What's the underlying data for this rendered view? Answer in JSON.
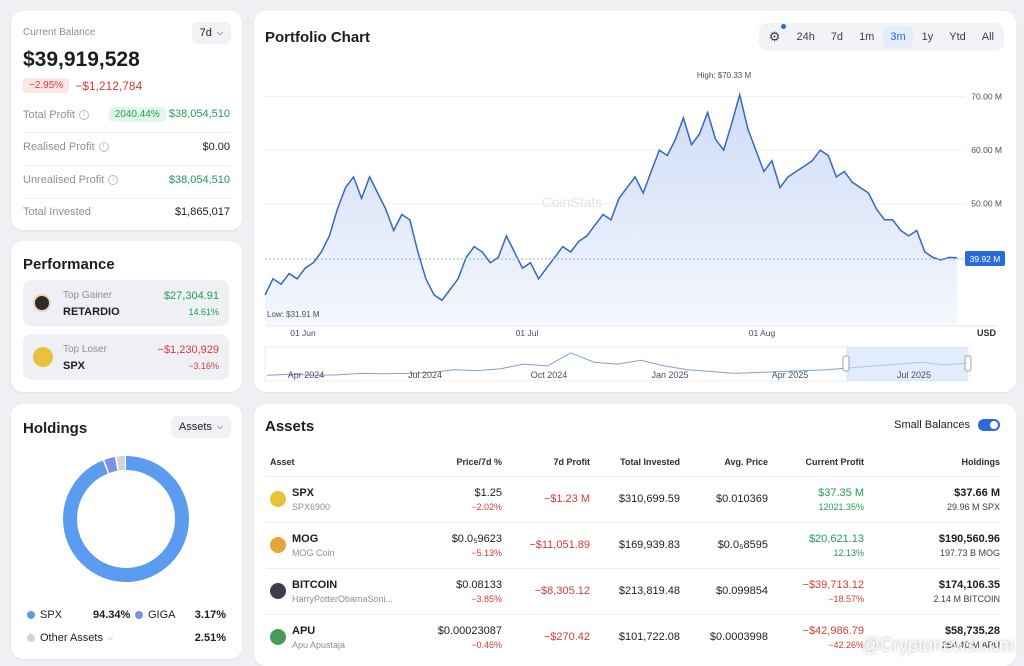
{
  "balance": {
    "label": "Current Balance",
    "period": "7d",
    "value": "$39,919,528",
    "change_pct": "−2.95%",
    "change_abs": "−$1,212,784",
    "rows": [
      {
        "label": "Total Profit",
        "badge": "2040.44%",
        "value": "$38,054,510",
        "tone": "green"
      },
      {
        "label": "Realised Profit",
        "value": "$0.00",
        "tone": "plain"
      },
      {
        "label": "Unrealised Profit",
        "value": "$38,054,510",
        "tone": "green"
      },
      {
        "label": "Total Invested",
        "value": "$1,865,017",
        "tone": "plain"
      }
    ]
  },
  "performance": {
    "title": "Performance",
    "gainer": {
      "label": "Top Gainer",
      "name": "RETARDIO",
      "value": "$27,304.91",
      "pct": "14.61%"
    },
    "loser": {
      "label": "Top Loser",
      "name": "SPX",
      "value": "−$1,230,929",
      "pct": "−3.16%"
    }
  },
  "holdings": {
    "title": "Holdings",
    "dropdown": "Assets",
    "slices": [
      {
        "name": "SPX",
        "pct": "94.34%",
        "value": 94.34,
        "color": "#5b9cf0"
      },
      {
        "name": "GIGA",
        "pct": "3.17%",
        "value": 3.17,
        "color": "#7e8fe6"
      },
      {
        "name": "Other Assets",
        "pct": "2.51%",
        "value": 2.51,
        "color": "#cfd3da"
      }
    ]
  },
  "chart": {
    "title": "Portfolio Chart",
    "tabs": [
      "24h",
      "7d",
      "1m",
      "3m",
      "1y",
      "Ytd",
      "All"
    ],
    "active_tab": "3m",
    "high_label": "High: $70.33 M",
    "low_label": "Low: $31.91 M",
    "current_label": "39.92 M",
    "watermark": "CoinStats",
    "currency": "USD",
    "navigator_labels": [
      "Apr 2024",
      "Jul 2024",
      "Oct 2024",
      "Jan 2025",
      "Apr 2025",
      "Jul 2025"
    ]
  },
  "chart_data": {
    "type": "area",
    "x_ticks": [
      "01 Jun",
      "01 Jul",
      "01 Aug"
    ],
    "y_ticks": [
      "70.00 M",
      "60.00 M",
      "50.00 M"
    ],
    "ylim": [
      30,
      74
    ],
    "y_unit": "M USD",
    "series": [
      {
        "values": [
          33,
          36,
          35,
          37,
          36,
          38,
          39,
          41,
          44,
          49,
          53,
          55,
          51,
          55,
          52,
          49,
          45,
          48,
          47,
          41,
          36,
          33,
          32,
          34,
          36,
          40,
          42,
          41,
          39,
          40,
          44,
          41,
          38,
          39,
          36,
          38,
          40,
          42,
          41,
          43,
          44,
          46,
          48,
          47,
          51,
          53,
          55,
          52,
          56,
          60,
          59,
          62,
          66,
          61,
          63,
          67,
          62,
          60,
          65,
          70.33,
          64,
          60,
          56,
          58,
          53,
          55,
          56,
          57,
          58,
          60,
          59,
          55,
          56,
          54,
          53,
          52,
          49,
          47,
          47,
          45,
          44,
          45,
          41,
          40,
          39.5,
          40,
          39.92
        ]
      }
    ],
    "grid": true
  },
  "assets": {
    "title": "Assets",
    "toggle_label": "Small Balances",
    "columns": [
      "Asset",
      "Price/7d %",
      "7d Profit",
      "Total Invested",
      "Avg. Price",
      "Current Profit",
      "Holdings"
    ],
    "rows": [
      {
        "symbol": "SPX",
        "name": "SPX6900",
        "icon": "spx-coin-icon",
        "color": "#e8c23a",
        "price": "$1.25",
        "price_pct": "−2.02%",
        "profit7d": "−$1.23 M",
        "invested": "$310,699.59",
        "avg": "$0.010369",
        "cur_profit": "$37.35 M",
        "cur_pct": "12021.35%",
        "cur_tone": "green",
        "holdings": "$37.66 M",
        "holdings_sub": "29.96 M SPX"
      },
      {
        "symbol": "MOG",
        "name": "MOG Coin",
        "icon": "mog-coin-icon",
        "color": "#e8a33a",
        "price": "$0.0₅9623",
        "price_pct": "−5.13%",
        "profit7d": "−$11,051.89",
        "invested": "$169,939.83",
        "avg": "$0.0₅8595",
        "cur_profit": "$20,621.13",
        "cur_pct": "12.13%",
        "cur_tone": "green",
        "holdings": "$190,560.96",
        "holdings_sub": "197.73 B MOG"
      },
      {
        "symbol": "BITCOIN",
        "name": "HarryPotterObamaSoni...",
        "icon": "bitcoin-hpos-icon",
        "color": "#3a3f48",
        "price": "$0.08133",
        "price_pct": "−3.85%",
        "profit7d": "−$8,305.12",
        "invested": "$213,819.48",
        "avg": "$0.099854",
        "cur_profit": "−$39,713.12",
        "cur_pct": "−18.57%",
        "cur_tone": "red",
        "holdings": "$174,106.35",
        "holdings_sub": "2.14 M BITCOIN"
      },
      {
        "symbol": "APU",
        "name": "Apu Apustaja",
        "icon": "apu-coin-icon",
        "color": "#4a9a55",
        "price": "$0.00023087",
        "price_pct": "−0.46%",
        "profit7d": "−$270.42",
        "invested": "$101,722.08",
        "avg": "$0.0003998",
        "cur_profit": "−$42,986.79",
        "cur_pct": "−42.26%",
        "cur_tone": "red",
        "holdings": "$58,735.28",
        "holdings_sub": "254.40 M APU"
      }
    ]
  },
  "watermark": "@Cryptonews.com"
}
